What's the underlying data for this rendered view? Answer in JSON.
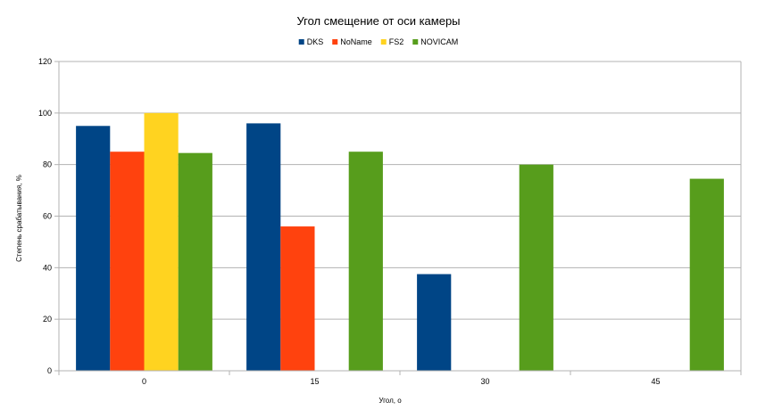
{
  "chart_data": {
    "type": "bar",
    "title": "Угол смещение от оси камеры",
    "xlabel": "Угол, о",
    "ylabel": "Степень срабатывания, %",
    "categories": [
      "0",
      "15",
      "30",
      "45"
    ],
    "ylim": [
      0,
      120
    ],
    "yticks": [
      0,
      20,
      40,
      60,
      80,
      100,
      120
    ],
    "grid": true,
    "legend_position": "top",
    "series": [
      {
        "name": "DKS",
        "color": "#004586",
        "values": [
          95,
          96,
          37.5,
          null
        ]
      },
      {
        "name": "NoName",
        "color": "#ff420e",
        "values": [
          85,
          56,
          null,
          null
        ]
      },
      {
        "name": "FS2",
        "color": "#ffd320",
        "values": [
          100,
          null,
          null,
          null
        ]
      },
      {
        "name": "NOVICAM",
        "color": "#579d1c",
        "values": [
          84.5,
          85,
          80,
          74.5
        ]
      }
    ]
  }
}
